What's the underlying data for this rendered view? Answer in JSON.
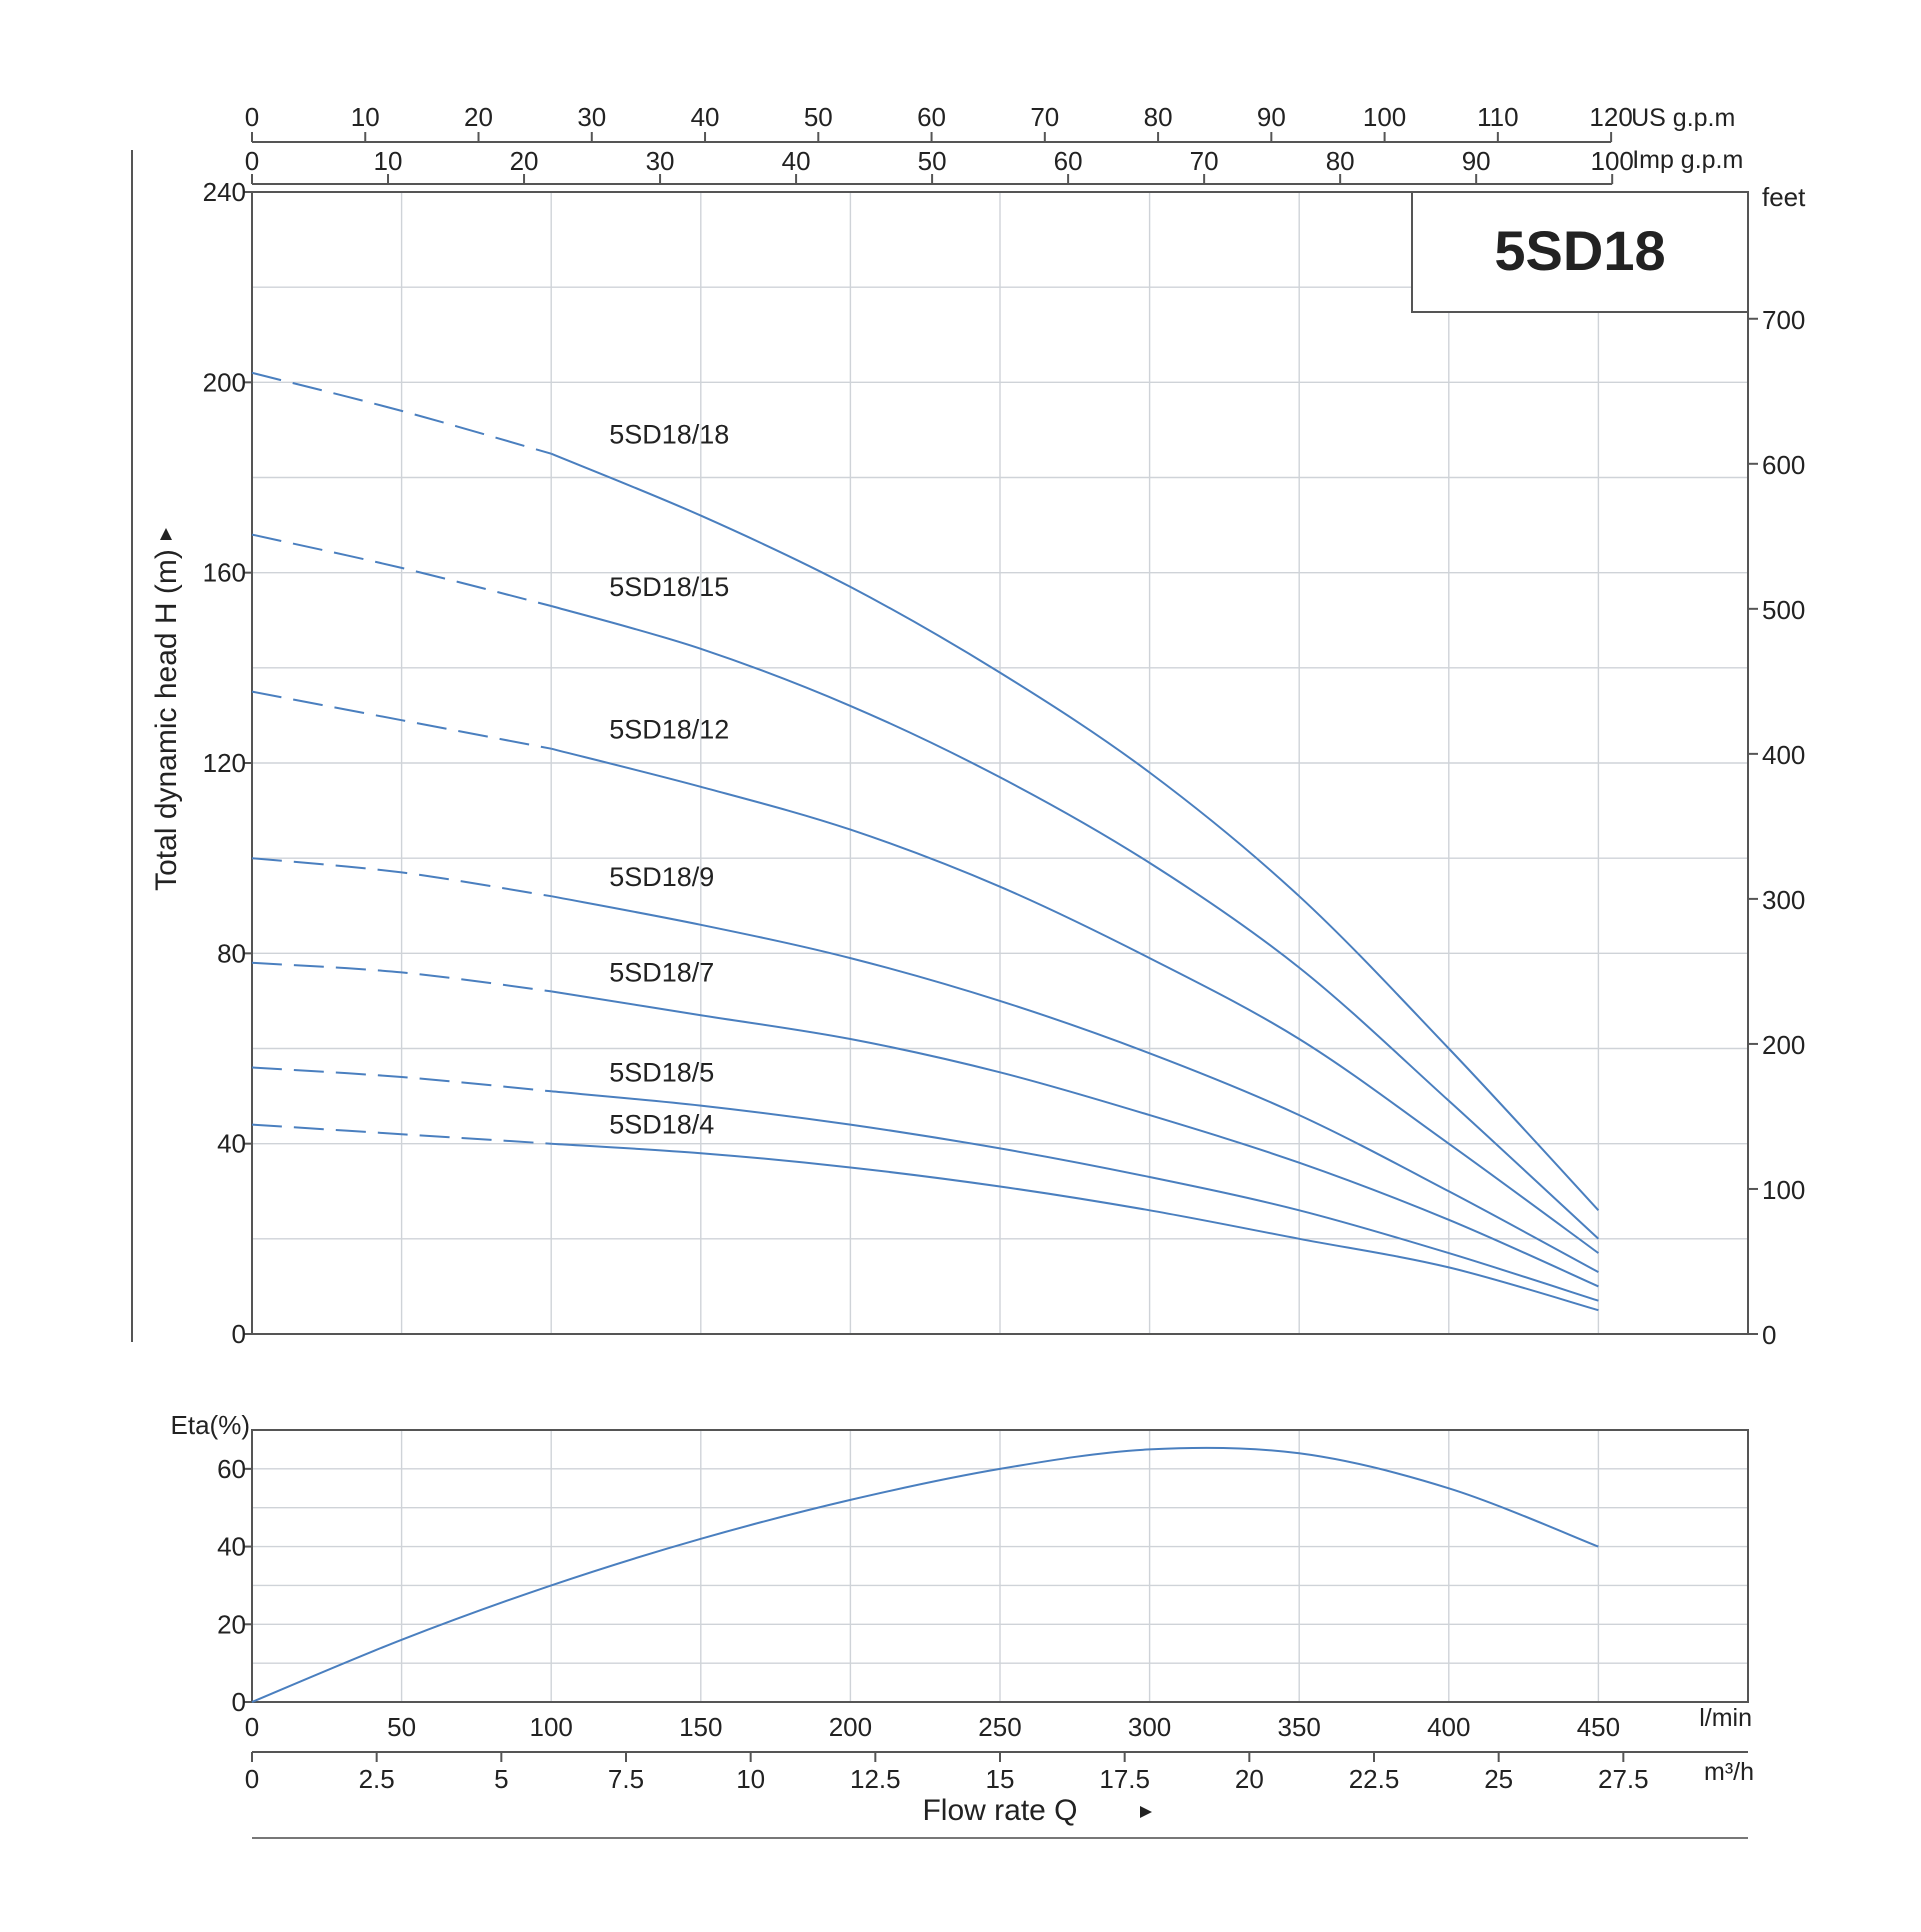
{
  "chart_data": [
    {
      "type": "line",
      "title": "5SD18",
      "ylabel": "Total dynamic head H (m)",
      "y_unit_right": "feet",
      "ylim": [
        0,
        240
      ],
      "yticks": [
        "0",
        "40",
        "80",
        "120",
        "160",
        "200",
        "240"
      ],
      "y2lim_feet": [
        0,
        787.4
      ],
      "y2ticks": [
        "0",
        "100",
        "200",
        "300",
        "400",
        "500",
        "600",
        "700"
      ],
      "x_unit": "l/min",
      "xlim": [
        0,
        500
      ],
      "xticks": [
        "0",
        "50",
        "100",
        "150",
        "200",
        "250",
        "300",
        "350",
        "400",
        "450"
      ],
      "top_axes": [
        {
          "unit": "US g.p.m",
          "ticks": [
            "0",
            "10",
            "20",
            "30",
            "40",
            "50",
            "60",
            "70",
            "80",
            "90",
            "100",
            "110",
            "120"
          ]
        },
        {
          "unit": "Imp g.p.m",
          "ticks": [
            "0",
            "10",
            "20",
            "30",
            "40",
            "50",
            "60",
            "70",
            "80",
            "90",
            "100"
          ]
        }
      ],
      "grid": true,
      "series_colors": "#4a7fbf",
      "dashed_segment": [
        0,
        100
      ],
      "series": [
        {
          "name": "5SD18/18",
          "x": [
            0,
            50,
            100,
            150,
            200,
            250,
            300,
            350,
            400,
            450
          ],
          "values": [
            202,
            194,
            185,
            172,
            157,
            139,
            118,
            92,
            60,
            26
          ]
        },
        {
          "name": "5SD18/15",
          "x": [
            0,
            50,
            100,
            150,
            200,
            250,
            300,
            350,
            400,
            450
          ],
          "values": [
            168,
            161,
            153,
            144,
            132,
            117,
            99,
            77,
            49,
            20
          ]
        },
        {
          "name": "5SD18/12",
          "x": [
            0,
            50,
            100,
            150,
            200,
            250,
            300,
            350,
            400,
            450
          ],
          "values": [
            135,
            129,
            123,
            115,
            106,
            94,
            79,
            62,
            40,
            17
          ]
        },
        {
          "name": "5SD18/9",
          "x": [
            0,
            50,
            100,
            150,
            200,
            250,
            300,
            350,
            400,
            450
          ],
          "values": [
            100,
            97,
            92,
            86,
            79,
            70,
            59,
            46,
            30,
            13
          ]
        },
        {
          "name": "5SD18/7",
          "x": [
            0,
            50,
            100,
            150,
            200,
            250,
            300,
            350,
            400,
            450
          ],
          "values": [
            78,
            76,
            72,
            67,
            62,
            55,
            46,
            36,
            24,
            10
          ]
        },
        {
          "name": "5SD18/5",
          "x": [
            0,
            50,
            100,
            150,
            200,
            250,
            300,
            350,
            400,
            450
          ],
          "values": [
            56,
            54,
            51,
            48,
            44,
            39,
            33,
            26,
            17,
            7
          ]
        },
        {
          "name": "5SD18/4",
          "x": [
            0,
            50,
            100,
            150,
            200,
            250,
            300,
            350,
            400,
            450
          ],
          "values": [
            44,
            42,
            40,
            38,
            35,
            31,
            26,
            20,
            14,
            5
          ]
        }
      ]
    },
    {
      "type": "line",
      "ylabel": "Eta(%)",
      "ylim": [
        0,
        70
      ],
      "yticks": [
        "0",
        "20",
        "40",
        "60"
      ],
      "xlabel": "Flow rate Q",
      "x_unit": "l/min",
      "xlim": [
        0,
        500
      ],
      "xticks": [
        "0",
        "50",
        "100",
        "150",
        "200",
        "250",
        "300",
        "350",
        "400",
        "450"
      ],
      "bottom_axis": {
        "unit": "m³/h",
        "ticks": [
          "0",
          "2.5",
          "5",
          "7.5",
          "10",
          "12.5",
          "15",
          "17.5",
          "20",
          "22.5",
          "25",
          "27.5"
        ]
      },
      "grid": true,
      "series": [
        {
          "x": [
            0,
            50,
            100,
            150,
            200,
            250,
            300,
            350,
            400,
            450
          ],
          "values": [
            0,
            16,
            30,
            42,
            52,
            60,
            65,
            64,
            55,
            40
          ]
        }
      ]
    }
  ]
}
